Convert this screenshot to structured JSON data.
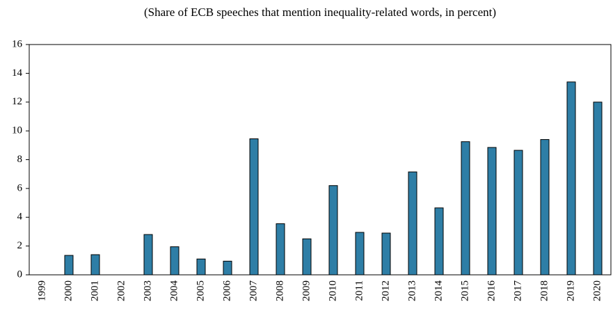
{
  "chart_data": {
    "type": "bar",
    "title": "(Share of ECB speeches that mention inequality-related words, in percent)",
    "categories": [
      "1999",
      "2000",
      "2001",
      "2002",
      "2003",
      "2004",
      "2005",
      "2006",
      "2007",
      "2008",
      "2009",
      "2010",
      "2011",
      "2012",
      "2013",
      "2014",
      "2015",
      "2016",
      "2017",
      "2018",
      "2019",
      "2020"
    ],
    "values": [
      0,
      1.35,
      1.4,
      0,
      2.8,
      1.95,
      1.1,
      0.95,
      9.45,
      3.55,
      2.5,
      6.2,
      2.95,
      2.9,
      7.15,
      4.65,
      9.25,
      8.85,
      8.65,
      9.4,
      13.4,
      12.0
    ],
    "color": "#2e7ea6",
    "ylim": [
      0,
      16
    ],
    "yticks": [
      0,
      2,
      4,
      6,
      8,
      10,
      12,
      14,
      16
    ],
    "grid": false
  }
}
